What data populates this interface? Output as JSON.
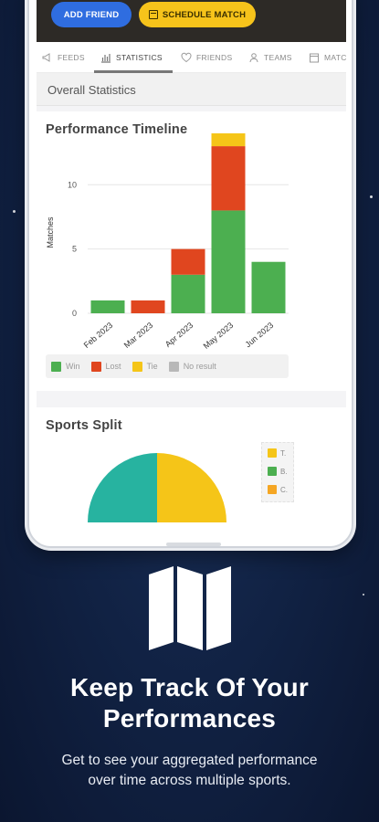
{
  "colors": {
    "background": "#122447",
    "win": "#4caf50",
    "lost": "#e0461f",
    "tie": "#f5c518",
    "no_result": "#b8b8b8",
    "primary_button": "#2f6de0",
    "schedule_button": "#f6c31b"
  },
  "hero": {
    "add_friend_label": "ADD FRIEND",
    "schedule_match_label": "SCHEDULE MATCH"
  },
  "tabs": [
    {
      "label": "FEEDS",
      "icon": "megaphone-icon"
    },
    {
      "label": "STATISTICS",
      "icon": "chart-icon",
      "active": true
    },
    {
      "label": "FRIENDS",
      "icon": "heart-icon"
    },
    {
      "label": "TEAMS",
      "icon": "person-icon"
    },
    {
      "label": "MATC",
      "icon": "calendar-icon"
    }
  ],
  "overall_statistics_label": "Overall Statistics",
  "performance_card": {
    "title": "Performance Timeline"
  },
  "chart_data": {
    "type": "bar",
    "stacked": true,
    "title": "Performance Timeline",
    "ylabel": "Matches",
    "xlabel": "",
    "categories": [
      "Feb 2023",
      "Mar 2023",
      "Apr 2023",
      "May 2023",
      "Jun 2023"
    ],
    "series": [
      {
        "name": "Win",
        "values": [
          1,
          0,
          3,
          8,
          4
        ]
      },
      {
        "name": "Lost",
        "values": [
          0,
          1,
          2,
          5,
          0
        ]
      },
      {
        "name": "Tie",
        "values": [
          0,
          0,
          0,
          1,
          0
        ]
      },
      {
        "name": "No result",
        "values": [
          0,
          0,
          0,
          0,
          0
        ]
      }
    ],
    "yticks": [
      0,
      5,
      10
    ],
    "ylim": [
      0,
      14
    ],
    "grid": true,
    "legend": "bottom"
  },
  "sports_card": {
    "title": "Sports Split",
    "legend": [
      {
        "label": "T.",
        "color": "#f5c518"
      },
      {
        "label": "B.",
        "color": "#4caf50"
      },
      {
        "label": "C.",
        "color": "#f5a623"
      }
    ]
  },
  "promo": {
    "icon": "map-icon",
    "headline_line1": "Keep Track Of Your",
    "headline_line2": "Performances",
    "subtext_line1": "Get to see your aggregated performance",
    "subtext_line2": "over time across multiple sports."
  }
}
